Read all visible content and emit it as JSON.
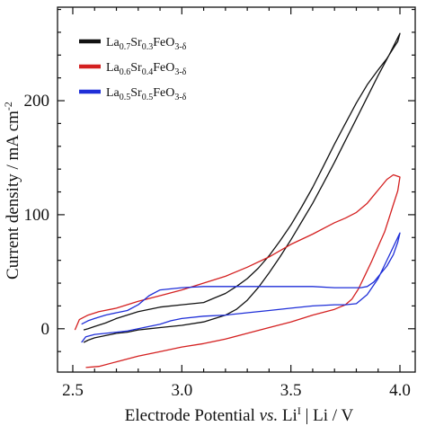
{
  "chart_data": {
    "type": "line",
    "xlabel": {
      "main": "Electrode Potential ",
      "italic": "vs.",
      "rest": " Li",
      "sup": "I",
      "tail": " | Li / V"
    },
    "ylabel": {
      "main": "Current density / mA cm",
      "sup": "-2"
    },
    "xlim": [
      2.43,
      4.07
    ],
    "ylim": [
      -38,
      282
    ],
    "xticks": [
      2.5,
      3.0,
      3.5,
      4.0
    ],
    "xtick_labels": [
      "2.5",
      "3.0",
      "3.5",
      "4.0"
    ],
    "yticks": [
      0,
      100,
      200
    ],
    "ytick_labels": [
      "0",
      "100",
      "200"
    ],
    "legend_position": "top-left",
    "series": [
      {
        "name": "La0.7Sr0.3FeO3-δ",
        "label_parts": [
          [
            "La",
            ""
          ],
          [
            "0.7",
            "sub"
          ],
          [
            "Sr",
            ""
          ],
          [
            "0.3",
            "sub"
          ],
          [
            "FeO",
            ""
          ],
          [
            "3-δ",
            "sub"
          ]
        ],
        "color": "#111111",
        "x": [
          2.55,
          2.57,
          2.6,
          2.65,
          2.7,
          2.75,
          2.8,
          2.85,
          2.9,
          3.0,
          3.1,
          3.2,
          3.25,
          3.3,
          3.35,
          3.4,
          3.45,
          3.5,
          3.55,
          3.6,
          3.65,
          3.7,
          3.75,
          3.8,
          3.85,
          3.9,
          3.95,
          4.0,
          3.99,
          3.97,
          3.94,
          3.9,
          3.85,
          3.8,
          3.75,
          3.7,
          3.65,
          3.6,
          3.55,
          3.5,
          3.45,
          3.4,
          3.35,
          3.3,
          3.25,
          3.2,
          3.15,
          3.1,
          3.0,
          2.9,
          2.8,
          2.7,
          2.65,
          2.6,
          2.57,
          2.55
        ],
        "y": [
          -12,
          -10,
          -8,
          -6,
          -4,
          -3,
          -1,
          0,
          1,
          3,
          6,
          12,
          17,
          25,
          36,
          49,
          63,
          78,
          94,
          110,
          128,
          146,
          165,
          184,
          203,
          222,
          240,
          259,
          252,
          246,
          237,
          227,
          214,
          198,
          180,
          162,
          143,
          124,
          107,
          91,
          77,
          64,
          53,
          44,
          37,
          31,
          27,
          23,
          21,
          19,
          15,
          9,
          5,
          2,
          0,
          -1
        ]
      },
      {
        "name": "La0.6Sr0.4FeO3-δ",
        "label_parts": [
          [
            "La",
            ""
          ],
          [
            "0.6",
            "sub"
          ],
          [
            "Sr",
            ""
          ],
          [
            "0.4",
            "sub"
          ],
          [
            "FeO",
            ""
          ],
          [
            "3-δ",
            "sub"
          ]
        ],
        "color": "#d42020",
        "x": [
          2.51,
          2.53,
          2.57,
          2.62,
          2.7,
          2.8,
          2.9,
          3.0,
          3.1,
          3.2,
          3.3,
          3.4,
          3.5,
          3.6,
          3.7,
          3.75,
          3.8,
          3.85,
          3.88,
          3.91,
          3.94,
          3.97,
          4.0,
          3.99,
          3.97,
          3.95,
          3.93,
          3.9,
          3.87,
          3.84,
          3.81,
          3.78,
          3.75,
          3.7,
          3.6,
          3.5,
          3.4,
          3.3,
          3.2,
          3.1,
          3.0,
          2.9,
          2.8,
          2.7,
          2.62,
          2.56
        ],
        "y": [
          -1,
          8,
          12,
          15,
          18,
          24,
          29,
          34,
          40,
          46,
          54,
          63,
          74,
          83,
          93,
          97,
          102,
          110,
          117,
          124,
          131,
          135,
          133,
          121,
          109,
          97,
          85,
          72,
          59,
          47,
          35,
          26,
          21,
          17,
          12,
          6,
          1,
          -4,
          -9,
          -13,
          -16,
          -20,
          -24,
          -29,
          -33,
          -34
        ]
      },
      {
        "name": "La0.5Sr0.5FeO3-δ",
        "label_parts": [
          [
            "La",
            ""
          ],
          [
            "0.5",
            "sub"
          ],
          [
            "Sr",
            ""
          ],
          [
            "0.5",
            "sub"
          ],
          [
            "FeO",
            ""
          ],
          [
            "3-δ",
            "sub"
          ]
        ],
        "color": "#1f2fd8",
        "x": [
          2.54,
          2.56,
          2.6,
          2.65,
          2.7,
          2.75,
          2.8,
          2.85,
          2.9,
          2.95,
          3.0,
          3.1,
          3.2,
          3.3,
          3.4,
          3.5,
          3.6,
          3.7,
          3.75,
          3.8,
          3.85,
          3.9,
          3.95,
          4.0,
          3.99,
          3.97,
          3.94,
          3.91,
          3.88,
          3.85,
          3.82,
          3.8,
          3.75,
          3.7,
          3.6,
          3.5,
          3.4,
          3.3,
          3.2,
          3.1,
          3.0,
          2.95,
          2.9,
          2.85,
          2.8,
          2.75,
          2.7,
          2.65,
          2.6,
          2.57,
          2.54
        ],
        "y": [
          -12,
          -7,
          -5,
          -4,
          -3,
          -2,
          0,
          2,
          4,
          7,
          9,
          11,
          12,
          14,
          16,
          18,
          20,
          21,
          21,
          22,
          30,
          44,
          64,
          84,
          76,
          65,
          55,
          48,
          41,
          37,
          36,
          36,
          36,
          36,
          37,
          37,
          37,
          37,
          37,
          37,
          36,
          35,
          34,
          29,
          21,
          16,
          14,
          12,
          9,
          7,
          4
        ]
      }
    ]
  }
}
